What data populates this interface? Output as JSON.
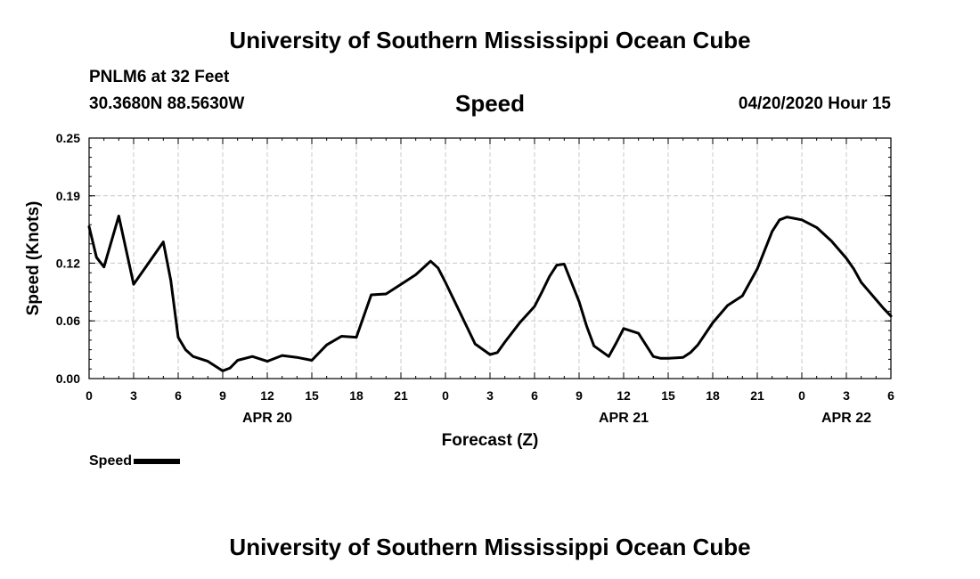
{
  "header": {
    "title": "University of Southern Mississippi Ocean Cube",
    "station": "PNLM6 at 32 Feet",
    "coords": "30.3680N 88.5630W",
    "variable": "Speed",
    "issued": "04/20/2020 Hour 15"
  },
  "footer": {
    "title": "University of Southern Mississippi Ocean Cube"
  },
  "legend": {
    "label": "Speed",
    "color": "#000000"
  },
  "chart_data": {
    "type": "line",
    "title": "Speed",
    "xlabel": "Forecast (Z)",
    "ylabel": "Speed (Knots)",
    "ylim": [
      0,
      0.25
    ],
    "xlim": [
      0,
      54
    ],
    "grid": true,
    "legend_position": "bottom-left",
    "y_ticks": [
      "0.00",
      "0.06",
      "0.12",
      "0.19",
      "0.25"
    ],
    "x_ticks": [
      "0",
      "3",
      "6",
      "9",
      "12",
      "15",
      "18",
      "21",
      "0",
      "3",
      "6",
      "9",
      "12",
      "15",
      "18",
      "21",
      "0",
      "3",
      "6"
    ],
    "date_labels": [
      {
        "label": "APR 20",
        "at_hour": 12
      },
      {
        "label": "APR 21",
        "at_hour": 36
      },
      {
        "label": "APR 22",
        "at_hour": 51
      }
    ],
    "series": [
      {
        "name": "Speed",
        "color": "#000000",
        "x": [
          0,
          0.5,
          1,
          2,
          3,
          4,
          5,
          5.5,
          6,
          6.5,
          7,
          8,
          9,
          9.5,
          10,
          11,
          12,
          13,
          14,
          15,
          16,
          17,
          18,
          19,
          20,
          21,
          22,
          23,
          23.5,
          24,
          25,
          26,
          27,
          27.5,
          28,
          29,
          30,
          30.5,
          31,
          31.5,
          32,
          33,
          33.5,
          34,
          35,
          35.5,
          36,
          37,
          38,
          38.5,
          39,
          40,
          40.5,
          41,
          42,
          43,
          44,
          45,
          46,
          46.5,
          47,
          48,
          49,
          50,
          51,
          51.5,
          52,
          52.5,
          53,
          53.5,
          54
        ],
        "values": [
          0.158,
          0.126,
          0.116,
          0.169,
          0.098,
          0.12,
          0.142,
          0.102,
          0.043,
          0.03,
          0.023,
          0.018,
          0.008,
          0.011,
          0.019,
          0.023,
          0.018,
          0.024,
          0.022,
          0.019,
          0.035,
          0.044,
          0.043,
          0.087,
          0.088,
          0.098,
          0.108,
          0.122,
          0.115,
          0.1,
          0.068,
          0.036,
          0.025,
          0.027,
          0.038,
          0.058,
          0.075,
          0.09,
          0.106,
          0.118,
          0.119,
          0.08,
          0.055,
          0.034,
          0.023,
          0.037,
          0.052,
          0.047,
          0.023,
          0.021,
          0.021,
          0.022,
          0.027,
          0.035,
          0.058,
          0.076,
          0.086,
          0.114,
          0.153,
          0.165,
          0.168,
          0.165,
          0.157,
          0.143,
          0.125,
          0.114,
          0.1,
          0.091,
          0.082,
          0.073,
          0.065
        ]
      }
    ]
  }
}
